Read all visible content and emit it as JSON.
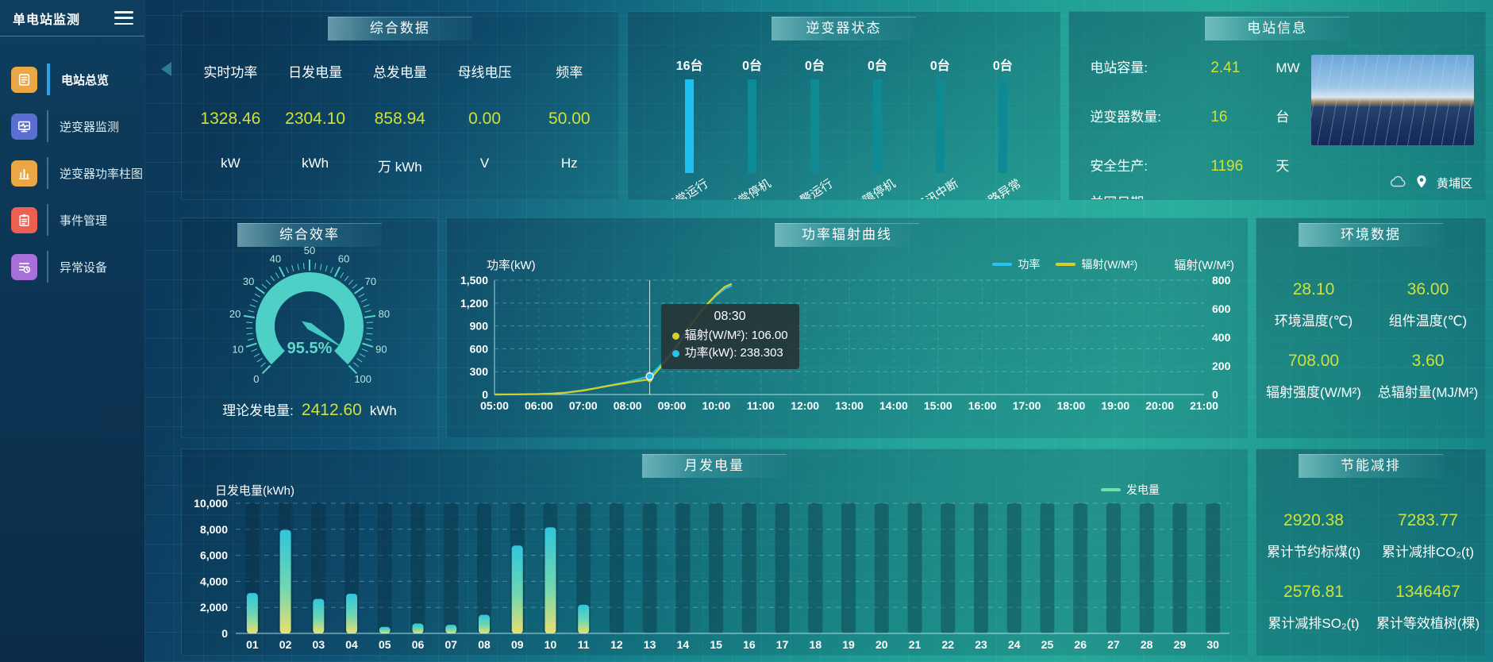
{
  "app": {
    "title": "单电站监测"
  },
  "sidebar": {
    "items": [
      {
        "label": "电站总览"
      },
      {
        "label": "逆变器监测"
      },
      {
        "label": "逆变器功率柱图"
      },
      {
        "label": "事件管理"
      },
      {
        "label": "异常设备"
      }
    ]
  },
  "summary": {
    "title": "综合数据",
    "stats": [
      {
        "label": "实时功率",
        "value": "1328.46",
        "unit": "kW"
      },
      {
        "label": "日发电量",
        "value": "2304.10",
        "unit": "kWh"
      },
      {
        "label": "总发电量",
        "value": "858.94",
        "unit": "万 kWh"
      },
      {
        "label": "母线电压",
        "value": "0.00",
        "unit": "V"
      },
      {
        "label": "频率",
        "value": "50.00",
        "unit": "Hz"
      }
    ]
  },
  "inverter_status": {
    "title": "逆变器状态",
    "items": [
      {
        "count": "16台",
        "label": "正常运行",
        "highlight": true
      },
      {
        "count": "0台",
        "label": "正常停机",
        "highlight": false
      },
      {
        "count": "0台",
        "label": "告警运行",
        "highlight": false
      },
      {
        "count": "0台",
        "label": "故障停机",
        "highlight": false
      },
      {
        "count": "0台",
        "label": "通讯中断",
        "highlight": false
      },
      {
        "count": "0台",
        "label": "支路异常",
        "highlight": false
      }
    ]
  },
  "station_info": {
    "title": "电站信息",
    "rows": [
      {
        "label": "电站容量:",
        "value": "2.41",
        "unit": "MW"
      },
      {
        "label": "逆变器数量:",
        "value": "16",
        "unit": "台"
      },
      {
        "label": "安全生产:",
        "value": "1196",
        "unit": "天"
      },
      {
        "label": "并网日期: :",
        "value": "",
        "unit": ""
      }
    ],
    "location": "黄埔区"
  },
  "efficiency": {
    "title": "综合效率",
    "theory_label": "理论发电量:",
    "theory_value": "2412.60",
    "theory_unit": "kWh"
  },
  "environment": {
    "title": "环境数据",
    "stats": [
      {
        "value": "28.10",
        "label": "环境温度(℃)"
      },
      {
        "value": "36.00",
        "label": "组件温度(℃)"
      },
      {
        "value": "708.00",
        "label": "辐射强度(W/M²)"
      },
      {
        "value": "3.60",
        "label": "总辐射量(MJ/M²)"
      }
    ]
  },
  "savings": {
    "title": "节能减排",
    "stats": [
      {
        "value": "2920.38",
        "label": "累计节约标煤(t)"
      },
      {
        "value": "7283.77",
        "label": "累计减排CO₂(t)"
      },
      {
        "value": "2576.81",
        "label": "累计减排SO₂(t)"
      },
      {
        "value": "1346467",
        "label": "累计等效植树(棵)"
      }
    ]
  },
  "chart_data": [
    {
      "id": "power_radiation",
      "type": "line",
      "title": "功率辐射曲线",
      "ylabel_left": "功率(kW)",
      "ylabel_right": "辐射(W/M²)",
      "ylim_left": [
        0,
        1500
      ],
      "yticks_left": [
        "0",
        "300",
        "600",
        "900",
        "1,200",
        "1,500"
      ],
      "ylim_right": [
        0,
        800
      ],
      "yticks_right": [
        "0",
        "200",
        "400",
        "600",
        "800"
      ],
      "x_range_hours": [
        5,
        21
      ],
      "xticks": [
        "05:00",
        "06:00",
        "07:00",
        "08:00",
        "09:00",
        "10:00",
        "11:00",
        "12:00",
        "13:00",
        "14:00",
        "15:00",
        "16:00",
        "17:00",
        "18:00",
        "19:00",
        "20:00",
        "21:00"
      ],
      "legend": [
        {
          "name": "功率",
          "color": "#29c1ee"
        },
        {
          "name": "辐射(W/M²)",
          "color": "#d6cf2a"
        }
      ],
      "series": [
        {
          "name": "功率",
          "axis": "left",
          "color": "#29c1ee",
          "points": [
            [
              5,
              0
            ],
            [
              5.5,
              2
            ],
            [
              6,
              6
            ],
            [
              6.3,
              12
            ],
            [
              6.6,
              25
            ],
            [
              7,
              55
            ],
            [
              7.3,
              85
            ],
            [
              7.6,
              120
            ],
            [
              8,
              165
            ],
            [
              8.2,
              195
            ],
            [
              8.5,
              238.3
            ],
            [
              8.8,
              420
            ],
            [
              9.1,
              640
            ],
            [
              9.4,
              900
            ],
            [
              9.7,
              1130
            ],
            [
              10,
              1300
            ],
            [
              10.2,
              1390
            ],
            [
              10.35,
              1430
            ]
          ]
        },
        {
          "name": "辐射",
          "axis": "right",
          "color": "#d6cf2a",
          "points": [
            [
              5,
              0
            ],
            [
              5.5,
              1
            ],
            [
              6,
              3
            ],
            [
              6.3,
              6
            ],
            [
              6.6,
              12
            ],
            [
              7,
              28
            ],
            [
              7.3,
              45
            ],
            [
              7.6,
              62
            ],
            [
              8,
              82
            ],
            [
              8.2,
              93
            ],
            [
              8.5,
              106
            ],
            [
              8.8,
              210
            ],
            [
              9.1,
              330
            ],
            [
              9.4,
              470
            ],
            [
              9.7,
              600
            ],
            [
              10,
              700
            ],
            [
              10.2,
              755
            ],
            [
              10.35,
              775
            ]
          ]
        }
      ],
      "tooltip": {
        "time": "08:30",
        "x_hour": 8.5,
        "rows": [
          {
            "label": "辐射(W/M²)",
            "value": "106.00",
            "num": 106,
            "axis": "right",
            "color": "#d6cf2a"
          },
          {
            "label": "功率(kW)",
            "value": "238.303",
            "num": 238.303,
            "axis": "left",
            "color": "#29c1ee"
          }
        ]
      }
    },
    {
      "id": "monthly_generation",
      "type": "bar",
      "title": "月发电量",
      "ylabel": "日发电量(kWh)",
      "ylim": [
        0,
        10000
      ],
      "yticks": [
        "0",
        "2,000",
        "4,000",
        "6,000",
        "8,000",
        "10,000"
      ],
      "categories": [
        "01",
        "02",
        "03",
        "04",
        "05",
        "06",
        "07",
        "08",
        "09",
        "10",
        "11",
        "12",
        "13",
        "14",
        "15",
        "16",
        "17",
        "18",
        "19",
        "20",
        "21",
        "22",
        "23",
        "24",
        "25",
        "26",
        "27",
        "28",
        "29",
        "30"
      ],
      "values": [
        3100,
        7950,
        2650,
        3050,
        500,
        760,
        660,
        1430,
        6750,
        8150,
        2200,
        0,
        0,
        0,
        0,
        0,
        0,
        0,
        0,
        0,
        0,
        0,
        0,
        0,
        0,
        0,
        0,
        0,
        0,
        0
      ],
      "legend": [
        {
          "name": "发电量",
          "color": "#6fdfae"
        }
      ]
    },
    {
      "id": "efficiency_gauge",
      "type": "gauge",
      "min": 0,
      "max": 100,
      "value": 95.5,
      "label": "95.5%",
      "ticks": [
        "0",
        "10",
        "20",
        "30",
        "40",
        "50",
        "60",
        "70",
        "80",
        "90",
        "100"
      ]
    }
  ]
}
